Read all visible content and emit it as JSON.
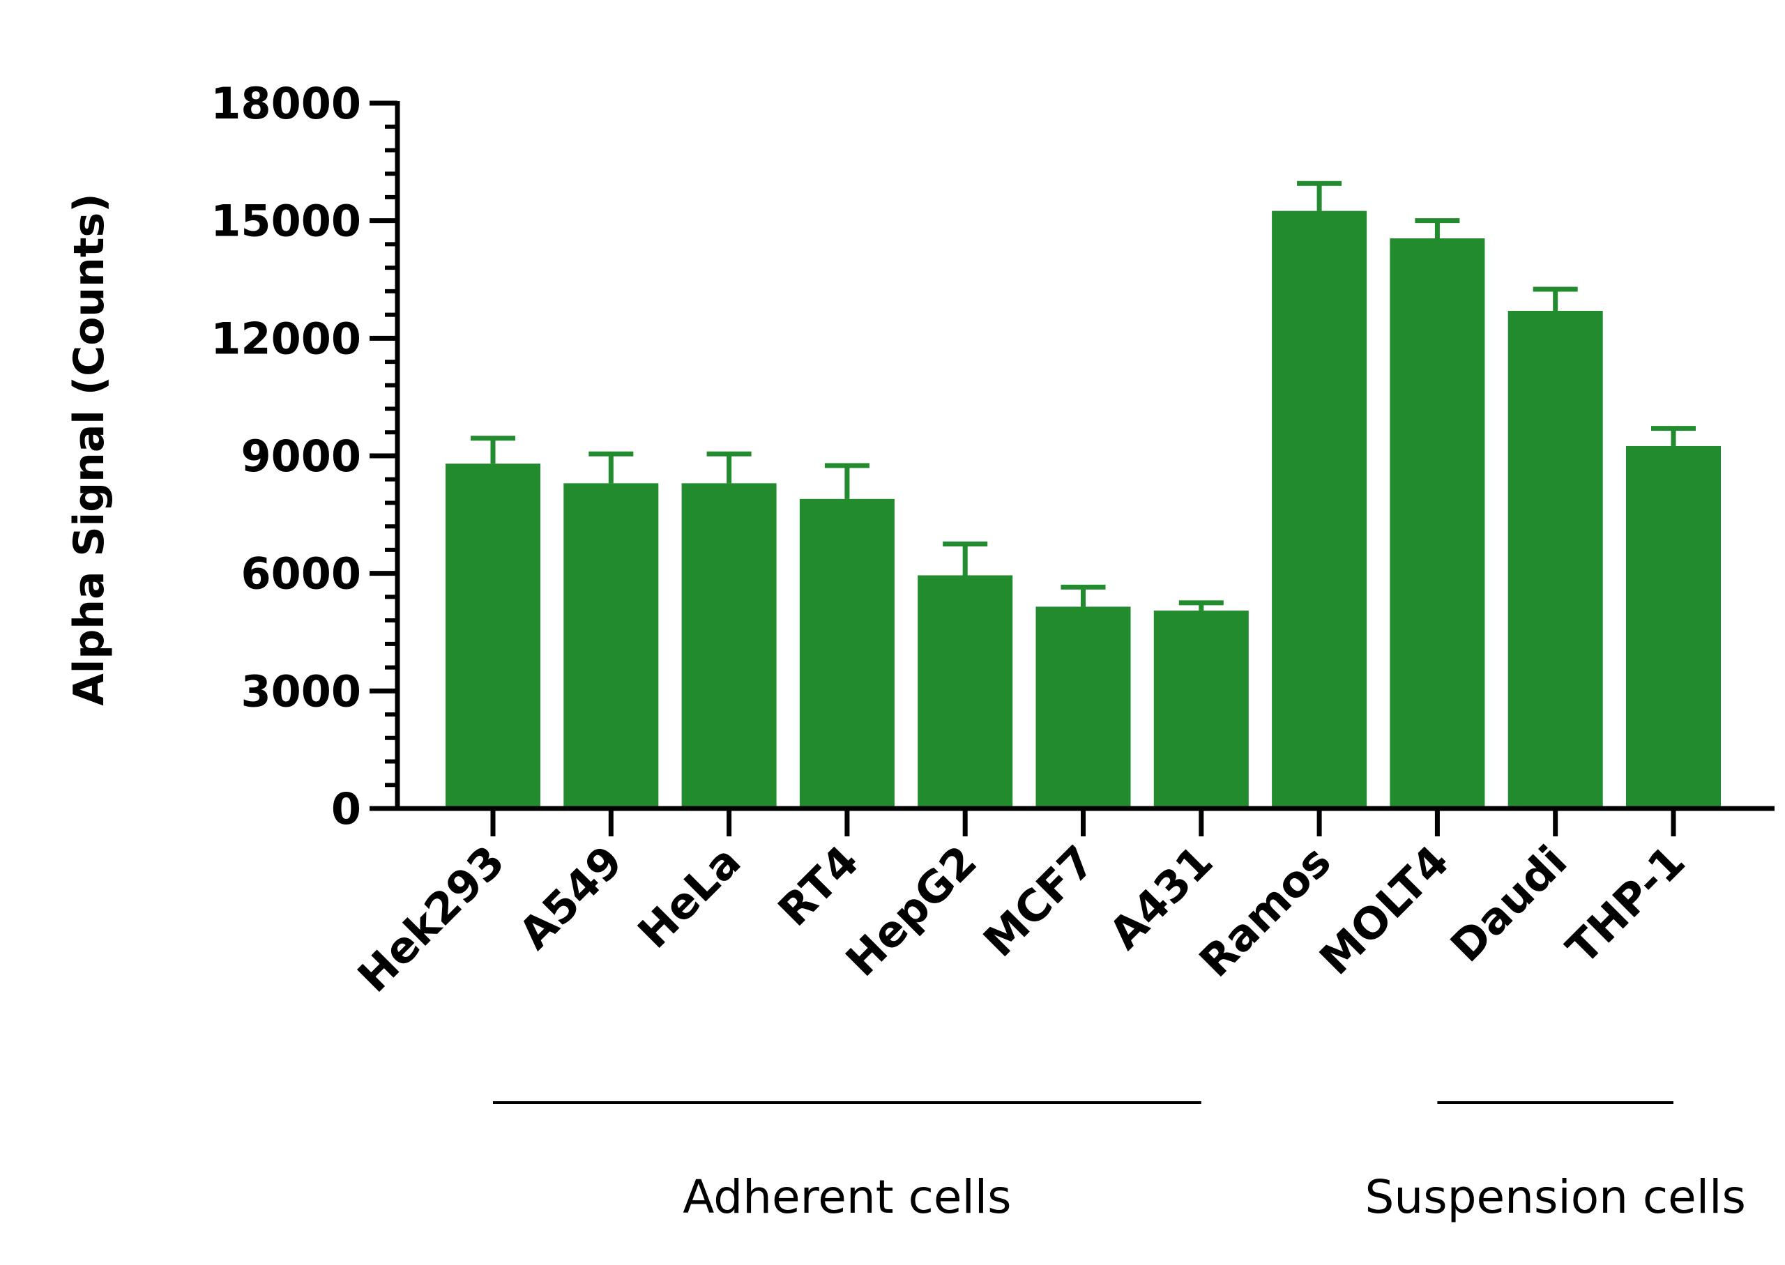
{
  "chart_data": {
    "type": "bar",
    "ylabel": "Alpha Signal (Counts)",
    "ylim": [
      0,
      18000
    ],
    "yticks": [
      0,
      3000,
      6000,
      9000,
      12000,
      15000,
      18000
    ],
    "yminor_per_major": 5,
    "categories": [
      "Hek293",
      "A549",
      "HeLa",
      "RT4",
      "HepG2",
      "MCF7",
      "A431",
      "Ramos",
      "MOLT4",
      "Daudi",
      "THP-1"
    ],
    "values": [
      8800,
      8300,
      8300,
      7900,
      5950,
      5150,
      5050,
      15250,
      14550,
      12700,
      9250
    ],
    "errors": [
      650,
      750,
      750,
      850,
      800,
      500,
      200,
      700,
      450,
      550,
      450
    ],
    "bar_color": "#228B2D",
    "groups": [
      {
        "label": "Adherent cells",
        "from": 0,
        "to": 6
      },
      {
        "label": "Suspension cells",
        "from": 8,
        "to": 10
      }
    ],
    "grid": false,
    "legend": "none"
  }
}
